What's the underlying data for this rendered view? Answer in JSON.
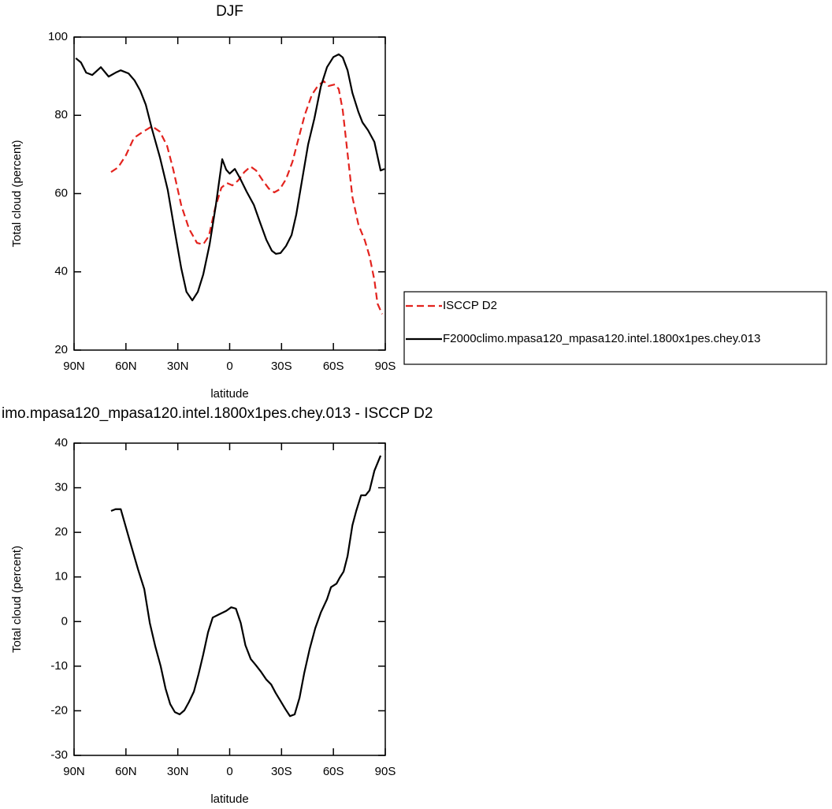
{
  "chart_data": [
    {
      "type": "line",
      "title": "DJF",
      "xlabel": "latitude",
      "ylabel": "Total cloud (percent)",
      "xlim": [
        90,
        -90
      ],
      "ylim": [
        20,
        100
      ],
      "xticks": [
        {
          "value": 90,
          "label": "90N"
        },
        {
          "value": 60,
          "label": "60N"
        },
        {
          "value": 30,
          "label": "30N"
        },
        0,
        {
          "value": -30,
          "label": "30S"
        },
        {
          "value": -60,
          "label": "60S"
        },
        {
          "value": -90,
          "label": "90S"
        }
      ],
      "yticks": [
        20,
        40,
        60,
        80,
        100
      ],
      "legend": "right",
      "series": [
        {
          "name": "ISCCP D2",
          "color": "#e3231e",
          "line_style": "dashed",
          "x": [
            68.6,
            64.5,
            60,
            55.4,
            50.8,
            44.9,
            40.3,
            36.2,
            32.6,
            28,
            23.5,
            18.9,
            15.3,
            12,
            8.4,
            4.8,
            1.6,
            -1.6,
            -4.8,
            -8.5,
            -12.1,
            -15.3,
            -18.9,
            -22.6,
            -25.8,
            -29,
            -32.6,
            -36.3,
            -39.9,
            -43.5,
            -47.6,
            -51.3,
            -54.5,
            -57.2,
            -60.9,
            -63.1,
            -65.4,
            -68.2,
            -71,
            -74.5,
            -78.2,
            -80.9,
            -83.7,
            -85.5,
            -88.2
          ],
          "values": [
            65.5,
            66.7,
            69.8,
            74.2,
            75.6,
            77.2,
            75.8,
            72.2,
            66.1,
            57,
            51,
            47.4,
            47,
            49.2,
            56.3,
            61.5,
            62.7,
            62.1,
            63.3,
            65.5,
            66.9,
            65.9,
            63.5,
            61.3,
            60.3,
            61.1,
            63.7,
            68.1,
            74.2,
            80.2,
            85.3,
            87.7,
            88.7,
            87.5,
            87.9,
            86.7,
            81.3,
            70.2,
            59.1,
            52,
            48,
            44,
            37.9,
            31.9,
            29.2
          ]
        },
        {
          "name": "F2000climo.mpasa120_mpasa120.intel.1800x1pes.chey.013",
          "color": "#000000",
          "line_style": "solid",
          "x": [
            89,
            86,
            83,
            79.5,
            74.5,
            70,
            66,
            63,
            58.5,
            55,
            51.7,
            48.5,
            45,
            40.3,
            35.8,
            32,
            28,
            25,
            21.6,
            18.4,
            15.3,
            11.6,
            8,
            4.3,
            2,
            0,
            -3,
            -6,
            -9.8,
            -14,
            -17.6,
            -21.2,
            -24.4,
            -26.7,
            -29.4,
            -32.6,
            -35.8,
            -38.5,
            -42.2,
            -45.4,
            -49,
            -52.7,
            -56.3,
            -60,
            -63.1,
            -65.4,
            -68.2,
            -71,
            -74.5,
            -76.8,
            -80,
            -83.7,
            -87.3,
            -89.6
          ],
          "values": [
            94.6,
            93.5,
            90.9,
            90.3,
            92.3,
            89.9,
            90.9,
            91.5,
            90.7,
            88.9,
            86.3,
            82.7,
            76.6,
            69.2,
            60.9,
            51,
            40.9,
            34.9,
            32.7,
            34.9,
            39.3,
            47,
            57,
            68.8,
            66.1,
            65.1,
            66.3,
            63.9,
            60.5,
            57.1,
            52.6,
            48.2,
            45.4,
            44.6,
            44.8,
            46.6,
            49.4,
            54.6,
            64.3,
            72.6,
            79.2,
            87.3,
            92.3,
            94.9,
            95.6,
            94.8,
            91.5,
            85.7,
            80.8,
            78.2,
            76.2,
            73.2,
            65.9,
            66.3
          ]
        }
      ]
    },
    {
      "type": "line",
      "title": "imo.mpasa120_mpasa120.intel.1800x1pes.chey.013 - ISCCP D2",
      "xlabel": "latitude",
      "ylabel": "Total cloud (percent)",
      "xlim": [
        90,
        -90
      ],
      "ylim": [
        -30,
        40
      ],
      "xticks": [
        {
          "value": 90,
          "label": "90N"
        },
        {
          "value": 60,
          "label": "60N"
        },
        {
          "value": 30,
          "label": "30N"
        },
        0,
        {
          "value": -30,
          "label": "30S"
        },
        {
          "value": -60,
          "label": "60S"
        },
        {
          "value": -90,
          "label": "90S"
        }
      ],
      "yticks": [
        -30,
        -20,
        -10,
        0,
        10,
        20,
        30,
        40
      ],
      "color": "#000000",
      "x": [
        68.6,
        66,
        63,
        58,
        53,
        49.4,
        46.2,
        43,
        39.9,
        37.1,
        34.4,
        31.7,
        28.9,
        26.2,
        23.5,
        20.7,
        18,
        15.3,
        12.5,
        9.8,
        6.2,
        2,
        -0.9,
        -3.6,
        -6.4,
        -9.1,
        -12.2,
        -15,
        -18.2,
        -21.2,
        -24,
        -26.6,
        -29.4,
        -32.2,
        -34.9,
        -37.6,
        -40.4,
        -43.1,
        -46.3,
        -49.5,
        -52.7,
        -56.3,
        -58.6,
        -61.8,
        -63.6,
        -65.9,
        -68.2,
        -71,
        -73.2,
        -76,
        -78.6,
        -80.9,
        -83.7,
        -87.3
      ],
      "values": [
        24.8,
        25.2,
        25.2,
        18.4,
        11.7,
        7.3,
        -0.3,
        -5.6,
        -10,
        -15,
        -18.5,
        -20.3,
        -20.8,
        -19.9,
        -18,
        -15.7,
        -11.8,
        -7.4,
        -2.4,
        0.9,
        1.6,
        2.4,
        3.2,
        2.9,
        -0.3,
        -5.3,
        -8.4,
        -9.7,
        -11.3,
        -13,
        -14.1,
        -16,
        -17.8,
        -19.6,
        -21.2,
        -20.8,
        -17.1,
        -11.6,
        -6.1,
        -1.5,
        2,
        5,
        7.7,
        8.5,
        9.8,
        11.2,
        14.7,
        21.6,
        24.8,
        28.3,
        28.3,
        29.4,
        33.8,
        37.2
      ]
    }
  ]
}
